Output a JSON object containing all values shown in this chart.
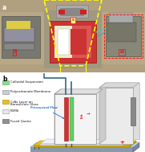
{
  "panel_a_label": "a",
  "panel_b_label": "b",
  "legend_items": [
    {
      "label": "Colloidal Suspension",
      "color": "#90d890",
      "edge": "#44aa44"
    },
    {
      "label": "Polycarbonate Membrane",
      "color": "#cccccc",
      "edge": "#888888"
    },
    {
      "label": "CrAu Layer on\nBorosilicate Glass",
      "color": "#e8c020",
      "edge": "#aa8800"
    },
    {
      "label": "PDMS",
      "color": "#e8e8e8",
      "edge": "#999999"
    },
    {
      "label": "Fused Quartz",
      "color": "#909090",
      "edge": "#505050"
    }
  ],
  "pressure_flow_label": "Pressurized Flow",
  "roman_labels": [
    "i",
    "ii",
    "iii"
  ],
  "photo_bg": "#b8a888",
  "photo_left_equip": "#787868",
  "photo_center_bg": "#989878",
  "photo_right_equip": "#888878",
  "highlight_color": "#ffff00",
  "quartz_top": "#c8d8e8",
  "quartz_side": "#8899aa",
  "quartz_front": "#9aaabb",
  "gold_color": "#e8c020",
  "pdms_color": "#f0f0f8",
  "white_panel_color": "#f0f0f0",
  "gray_back_panel": "#d8d8d8",
  "red_membrane": "#cc3333",
  "green_flow": "#66cc66",
  "tube_color": "#336688",
  "annotation_color": "#2277cc"
}
